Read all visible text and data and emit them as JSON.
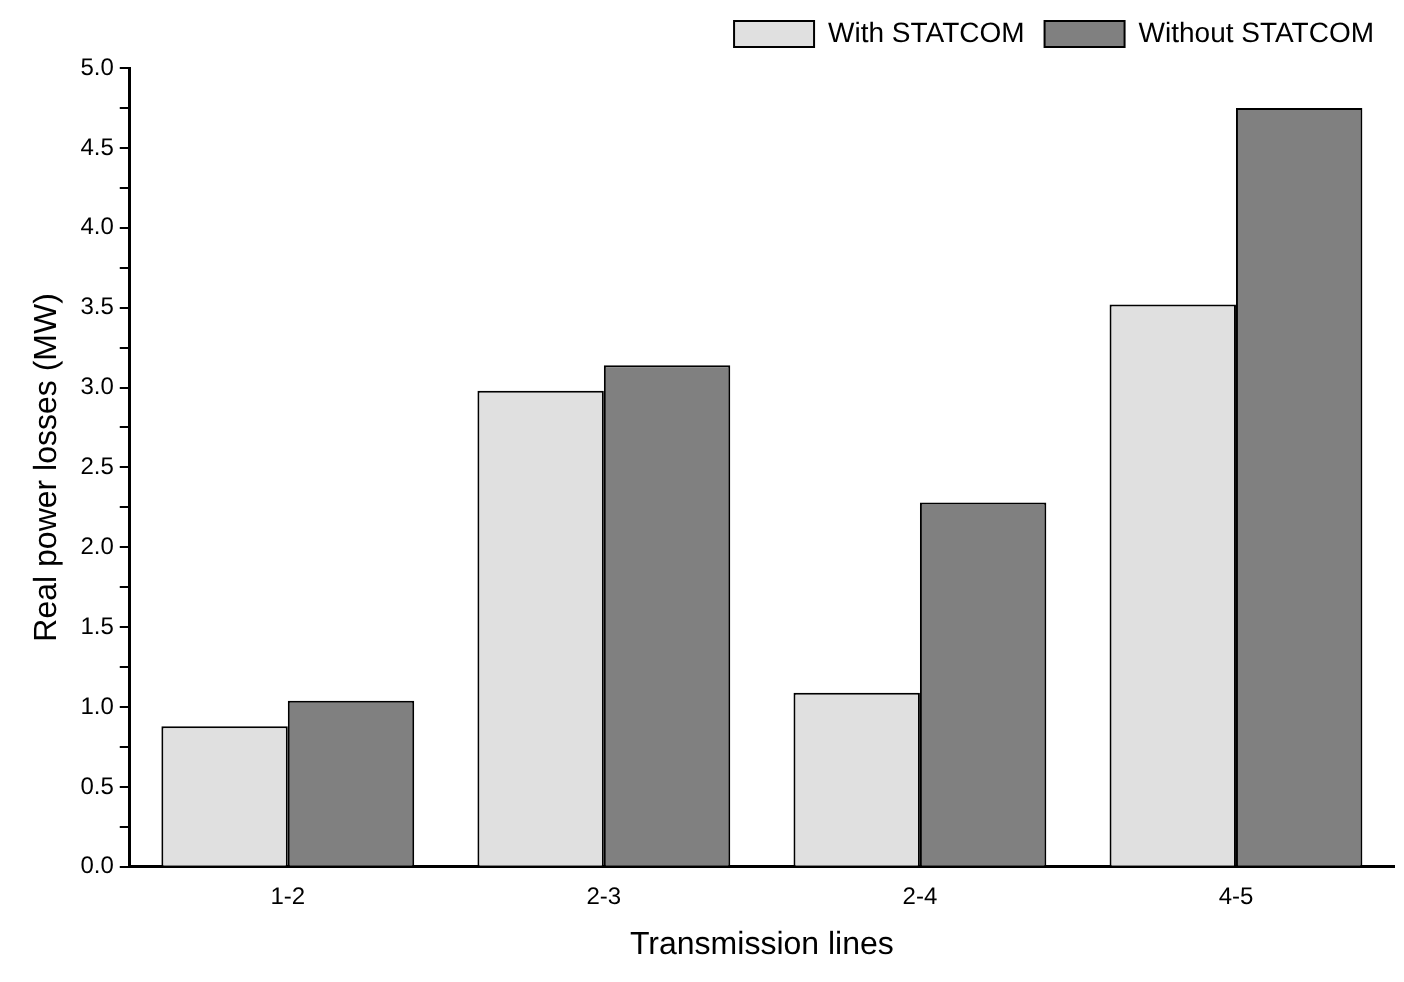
{
  "chart_data": {
    "type": "bar",
    "xlabel": "Transmission lines",
    "ylabel": "Real power losses (MW)",
    "categories": [
      "1-2",
      "2-3",
      "2-4",
      "4-5"
    ],
    "series": [
      {
        "name": "With STATCOM",
        "color": "#e0e0e0",
        "values": [
          0.88,
          2.98,
          1.09,
          3.52
        ]
      },
      {
        "name": "Without STATCOM",
        "color": "#808080",
        "values": [
          1.04,
          3.14,
          2.28,
          4.75
        ]
      }
    ],
    "ylim": [
      0,
      5
    ],
    "yticks": [
      {
        "value": 0,
        "label": "0.0"
      },
      {
        "value": 0.25,
        "label": null
      },
      0.5,
      {
        "value": 0.75,
        "label": null
      },
      {
        "value": 1,
        "label": "1.0"
      },
      {
        "value": 1.25,
        "label": null
      },
      1.5,
      {
        "value": 1.75,
        "label": null
      },
      {
        "value": 2,
        "label": "2.0"
      },
      {
        "value": 2.25,
        "label": null
      },
      2.5,
      {
        "value": 2.75,
        "label": null
      },
      {
        "value": 3,
        "label": "3.0"
      },
      {
        "value": 3.25,
        "label": null
      },
      3.5,
      {
        "value": 3.75,
        "label": null
      },
      {
        "value": 4,
        "label": "4.0"
      },
      {
        "value": 4.25,
        "label": null
      },
      4.5,
      {
        "value": 4.75,
        "label": null
      },
      {
        "value": 5,
        "label": "5.0"
      }
    ],
    "grid": false,
    "legend": "top right"
  }
}
